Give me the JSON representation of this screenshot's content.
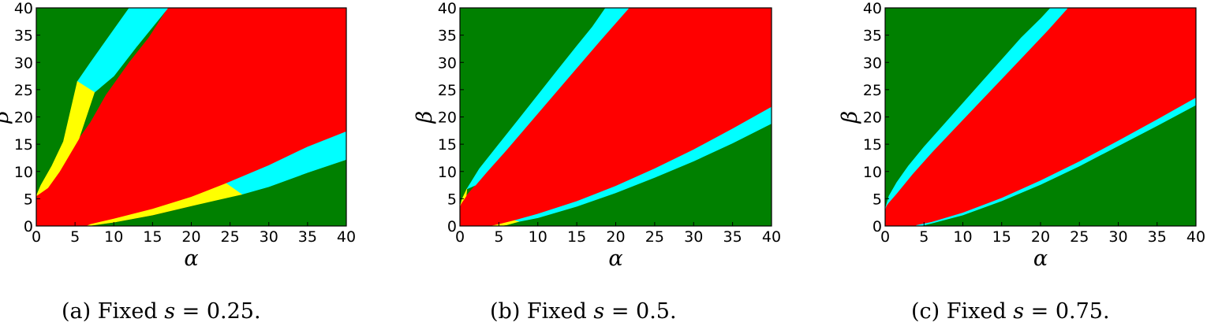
{
  "chart_data": [
    {
      "type": "heatmap",
      "panel": "a",
      "caption": "(a) Fixed s = 0.25.",
      "caption_prefix": "(a) Fixed ",
      "caption_var": "s",
      "caption_rest": " = 0.25.",
      "xlabel": "α",
      "ylabel": "β",
      "xlim": [
        0,
        40
      ],
      "ylim": [
        0,
        40
      ],
      "xticks": [
        "0",
        "5",
        "10",
        "15",
        "20",
        "25",
        "30",
        "35",
        "40"
      ],
      "yticks": [
        "0",
        "5",
        "10",
        "15",
        "20",
        "25",
        "30",
        "35",
        "40"
      ],
      "colors": {
        "background": "#008000",
        "band": "#00ffff",
        "inner": "#ffff00",
        "core": "#ff0000"
      },
      "upper_band_outer": [
        [
          0,
          0
        ],
        [
          0.3,
          5.5
        ],
        [
          1,
          8.2
        ],
        [
          2.5,
          12
        ],
        [
          5,
          17.5
        ],
        [
          7.5,
          22
        ],
        [
          10,
          27
        ],
        [
          12.5,
          31.5
        ],
        [
          15,
          36
        ],
        [
          17,
          40
        ]
      ],
      "upper_band_inner": [
        [
          17,
          40
        ],
        [
          14.5,
          34.5
        ],
        [
          12,
          30
        ],
        [
          9,
          24
        ],
        [
          7,
          19
        ],
        [
          5,
          15
        ],
        [
          3,
          11
        ],
        [
          1.5,
          8
        ],
        [
          0.5,
          6.2
        ],
        [
          0,
          5.5
        ]
      ],
      "upper_yellow": [
        [
          0,
          5.5
        ],
        [
          0.6,
          7.5
        ],
        [
          2,
          11
        ],
        [
          3.5,
          15.5
        ],
        [
          5.3,
          26.5
        ],
        [
          7.5,
          24.5
        ],
        [
          5.5,
          16
        ],
        [
          3,
          10
        ],
        [
          1.5,
          7
        ],
        [
          0,
          5.5
        ]
      ],
      "upper_cyan": [
        [
          5.3,
          26.5
        ],
        [
          7,
          30
        ],
        [
          9,
          34
        ],
        [
          12,
          40
        ],
        [
          17,
          40
        ],
        [
          13,
          33
        ],
        [
          10,
          27.5
        ],
        [
          7.5,
          24.5
        ]
      ],
      "core": [
        [
          0,
          0
        ],
        [
          0,
          5.5
        ],
        [
          1.5,
          8
        ],
        [
          3,
          11
        ],
        [
          5,
          15
        ],
        [
          7,
          19
        ],
        [
          9,
          24
        ],
        [
          12,
          30
        ],
        [
          14.5,
          34.5
        ],
        [
          17,
          40
        ],
        [
          40,
          40
        ],
        [
          40,
          12.2
        ],
        [
          35,
          9.9
        ],
        [
          30,
          7.7
        ],
        [
          25,
          5.6
        ],
        [
          20,
          3.7
        ],
        [
          15,
          2
        ],
        [
          10,
          0.7
        ],
        [
          6.5,
          0
        ]
      ],
      "lower_yellow": [
        [
          6.5,
          0
        ],
        [
          10,
          0.7
        ],
        [
          15,
          2
        ],
        [
          20,
          3.7
        ],
        [
          26.5,
          5.8
        ],
        [
          24.5,
          7.8
        ],
        [
          20,
          5.3
        ],
        [
          15,
          3.1
        ],
        [
          10,
          1.3
        ],
        [
          7,
          0.3
        ]
      ],
      "lower_cyan": [
        [
          26.5,
          5.8
        ],
        [
          30,
          7.2
        ],
        [
          35,
          9.8
        ],
        [
          40,
          12.2
        ],
        [
          40,
          17.3
        ],
        [
          35,
          14.5
        ],
        [
          30,
          11.1
        ],
        [
          24.5,
          7.8
        ]
      ]
    },
    {
      "type": "heatmap",
      "panel": "b",
      "caption": "(b) Fixed s = 0.5.",
      "caption_prefix": "(b) Fixed ",
      "caption_var": "s",
      "caption_rest": " = 0.5.",
      "xlabel": "α",
      "ylabel": "β",
      "xlim": [
        0,
        40
      ],
      "ylim": [
        0,
        40
      ],
      "xticks": [
        "0",
        "5",
        "10",
        "15",
        "20",
        "25",
        "30",
        "35",
        "40"
      ],
      "yticks": [
        "0",
        "5",
        "10",
        "15",
        "20",
        "25",
        "30",
        "35",
        "40"
      ],
      "colors": {
        "background": "#008000",
        "band": "#00ffff",
        "inner": "#ffff00",
        "core": "#ff0000"
      },
      "upper_band_outer": [
        [
          0,
          3.5
        ],
        [
          0.3,
          5
        ],
        [
          1,
          7.3
        ],
        [
          2.5,
          10.5
        ],
        [
          5,
          15
        ],
        [
          7.5,
          19.5
        ],
        [
          10,
          24
        ],
        [
          12.5,
          28.5
        ],
        [
          15,
          33
        ],
        [
          17,
          36.5
        ],
        [
          18.7,
          40
        ]
      ],
      "upper_band_inner": [
        [
          21.7,
          40
        ],
        [
          18,
          34
        ],
        [
          15,
          29
        ],
        [
          12,
          24
        ],
        [
          9,
          19
        ],
        [
          6,
          14
        ],
        [
          3.5,
          10
        ],
        [
          2,
          7.5
        ],
        [
          0.8,
          5.5
        ],
        [
          0,
          3.8
        ]
      ],
      "upper_yellow": [
        [
          0,
          3.5
        ],
        [
          0.3,
          5
        ],
        [
          0.9,
          6.8
        ],
        [
          0.8,
          5.5
        ],
        [
          0,
          3.8
        ]
      ],
      "upper_cyan": [
        [
          0.9,
          6.8
        ],
        [
          2.5,
          10.5
        ],
        [
          5,
          15
        ],
        [
          7.5,
          19.5
        ],
        [
          10,
          24
        ],
        [
          12.5,
          28.5
        ],
        [
          15,
          33
        ],
        [
          17,
          36.5
        ],
        [
          18.7,
          40
        ],
        [
          21.7,
          40
        ],
        [
          18,
          34
        ],
        [
          15,
          29
        ],
        [
          12,
          24
        ],
        [
          9,
          19
        ],
        [
          6,
          14
        ],
        [
          3.5,
          10
        ],
        [
          2,
          7.5
        ]
      ],
      "core": [
        [
          0,
          0
        ],
        [
          0,
          3.8
        ],
        [
          0.8,
          5.5
        ],
        [
          2,
          7.5
        ],
        [
          3.5,
          10
        ],
        [
          6,
          14
        ],
        [
          9,
          19
        ],
        [
          12,
          24
        ],
        [
          15,
          29
        ],
        [
          18,
          34
        ],
        [
          21.7,
          40
        ],
        [
          40,
          40
        ],
        [
          40,
          21.8
        ],
        [
          35,
          17.8
        ],
        [
          30,
          14
        ],
        [
          25,
          10.5
        ],
        [
          20,
          7.3
        ],
        [
          15,
          4.5
        ],
        [
          10,
          2.2
        ],
        [
          7,
          1
        ],
        [
          5,
          0.3
        ],
        [
          4,
          0
        ]
      ],
      "lower_yellow": [
        [
          4,
          0
        ],
        [
          5,
          0.3
        ],
        [
          7,
          1
        ],
        [
          7.5,
          0.8
        ],
        [
          6,
          0.2
        ],
        [
          5,
          0
        ]
      ],
      "lower_cyan": [
        [
          7,
          1
        ],
        [
          10,
          2.2
        ],
        [
          15,
          4.5
        ],
        [
          20,
          7.3
        ],
        [
          25,
          10.5
        ],
        [
          30,
          14
        ],
        [
          35,
          17.8
        ],
        [
          40,
          21.8
        ],
        [
          40,
          18.8
        ],
        [
          35,
          15.2
        ],
        [
          30,
          11.9
        ],
        [
          25,
          8.9
        ],
        [
          20,
          6.1
        ],
        [
          15,
          3.6
        ],
        [
          10,
          1.5
        ],
        [
          7.5,
          0.8
        ]
      ]
    },
    {
      "type": "heatmap",
      "panel": "c",
      "caption": "(c) Fixed s = 0.75.",
      "caption_prefix": "(c) Fixed ",
      "caption_var": "s",
      "caption_rest": " = 0.75.",
      "xlabel": "α",
      "ylabel": "β",
      "xlim": [
        0,
        40
      ],
      "ylim": [
        0,
        40
      ],
      "xticks": [
        "0",
        "5",
        "10",
        "15",
        "20",
        "25",
        "30",
        "35",
        "40"
      ],
      "yticks": [
        "0",
        "5",
        "10",
        "15",
        "20",
        "25",
        "30",
        "35",
        "40"
      ],
      "colors": {
        "background": "#008000",
        "band": "#00ffff",
        "inner": "#ffff00",
        "core": "#ff0000"
      },
      "upper_band_outer": [
        [
          0,
          3
        ],
        [
          0.5,
          5.5
        ],
        [
          1.5,
          8
        ],
        [
          3,
          11
        ],
        [
          5,
          14.5
        ],
        [
          7.5,
          18.5
        ],
        [
          10,
          22.5
        ],
        [
          12.5,
          26.5
        ],
        [
          15,
          30.5
        ],
        [
          17.5,
          34.5
        ],
        [
          20,
          38
        ],
        [
          21.3,
          40
        ]
      ],
      "upper_band_inner": [
        [
          23.5,
          40
        ],
        [
          21,
          36
        ],
        [
          18,
          31.5
        ],
        [
          15,
          27
        ],
        [
          12,
          22.5
        ],
        [
          9,
          18
        ],
        [
          6,
          13.5
        ],
        [
          3.5,
          9.5
        ],
        [
          1.5,
          6
        ],
        [
          0.4,
          4.2
        ],
        [
          0,
          3.4
        ]
      ],
      "upper_yellow": [],
      "upper_cyan": [
        [
          0,
          3
        ],
        [
          0.5,
          5.5
        ],
        [
          1.5,
          8
        ],
        [
          3,
          11
        ],
        [
          5,
          14.5
        ],
        [
          7.5,
          18.5
        ],
        [
          10,
          22.5
        ],
        [
          12.5,
          26.5
        ],
        [
          15,
          30.5
        ],
        [
          17.5,
          34.5
        ],
        [
          20,
          38
        ],
        [
          21.3,
          40
        ],
        [
          23.5,
          40
        ],
        [
          21,
          36
        ],
        [
          18,
          31.5
        ],
        [
          15,
          27
        ],
        [
          12,
          22.5
        ],
        [
          9,
          18
        ],
        [
          6,
          13.5
        ],
        [
          3.5,
          9.5
        ],
        [
          1.5,
          6
        ],
        [
          0.4,
          4.2
        ],
        [
          0,
          3.4
        ]
      ],
      "core": [
        [
          0,
          0
        ],
        [
          0,
          3.4
        ],
        [
          0.4,
          4.2
        ],
        [
          1.5,
          6
        ],
        [
          3.5,
          9.5
        ],
        [
          6,
          13.5
        ],
        [
          9,
          18
        ],
        [
          12,
          22.5
        ],
        [
          15,
          27
        ],
        [
          18,
          31.5
        ],
        [
          21,
          36
        ],
        [
          23.5,
          40
        ],
        [
          40,
          40
        ],
        [
          40,
          23.5
        ],
        [
          35,
          19.5
        ],
        [
          30,
          15.6
        ],
        [
          25,
          11.8
        ],
        [
          20,
          8.3
        ],
        [
          15,
          5.1
        ],
        [
          10,
          2.4
        ],
        [
          6,
          0.7
        ],
        [
          4,
          0.1
        ],
        [
          3.5,
          0
        ]
      ],
      "lower_yellow": [],
      "lower_cyan": [
        [
          4,
          0.1
        ],
        [
          6,
          0.7
        ],
        [
          10,
          2.4
        ],
        [
          15,
          5.1
        ],
        [
          20,
          8.3
        ],
        [
          25,
          11.8
        ],
        [
          30,
          15.6
        ],
        [
          35,
          19.5
        ],
        [
          40,
          23.5
        ],
        [
          40,
          22.2
        ],
        [
          35,
          18.4
        ],
        [
          30,
          14.7
        ],
        [
          25,
          11
        ],
        [
          20,
          7.6
        ],
        [
          15,
          4.6
        ],
        [
          10,
          2
        ],
        [
          6,
          0.5
        ],
        [
          4.5,
          0
        ]
      ]
    }
  ]
}
